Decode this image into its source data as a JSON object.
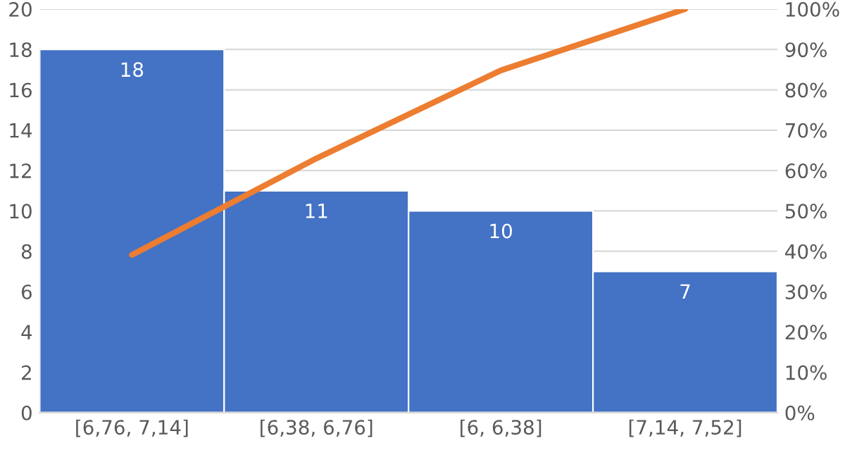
{
  "chart_data": {
    "type": "bar",
    "categories": [
      "[6,76, 7,14]",
      "[6,38, 6,76]",
      "[6, 6,38]",
      "[7,14, 7,52]"
    ],
    "series": [
      {
        "color": "#4472c4",
        "values": [
          18,
          11,
          10,
          7
        ],
        "value_labels": [
          "18",
          "11",
          "10",
          "7"
        ]
      },
      {
        "type": "line",
        "axis": "y2",
        "color": "#ed7d31",
        "values": [
          39.1,
          63.0,
          84.8,
          100
        ]
      }
    ],
    "ylim": [
      0,
      20
    ],
    "yticks": [
      0,
      2,
      4,
      6,
      8,
      10,
      12,
      14,
      16,
      18,
      20
    ],
    "y2lim": [
      0,
      100
    ],
    "y2ticks": [
      {
        "value": 0,
        "label": "0%"
      },
      {
        "value": 10,
        "label": "10%"
      },
      {
        "value": 20,
        "label": "20%"
      },
      {
        "value": 30,
        "label": "30%"
      },
      {
        "value": 40,
        "label": "40%"
      },
      {
        "value": 50,
        "label": "50%"
      },
      {
        "value": 60,
        "label": "60%"
      },
      {
        "value": 70,
        "label": "70%"
      },
      {
        "value": 80,
        "label": "80%"
      },
      {
        "value": 90,
        "label": "90%"
      },
      {
        "value": 100,
        "label": "100%"
      }
    ],
    "grid": "y",
    "marker": "none",
    "line_style": "solid"
  }
}
